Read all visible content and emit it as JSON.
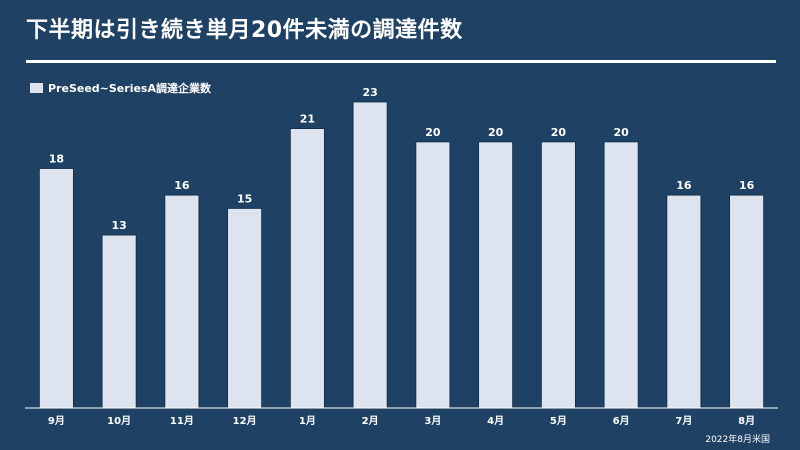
{
  "page": {
    "title": "下半期は引き続き単月20件未満の調達件数",
    "source_note": "2022年8月米国"
  },
  "colors": {
    "background": "#1f4164",
    "bar": "#dde4ef",
    "text": "#ffffff",
    "axis": "#ffffff"
  },
  "chart_data": {
    "type": "bar",
    "categories": [
      "9月",
      "10月",
      "11月",
      "12月",
      "1月",
      "2月",
      "3月",
      "4月",
      "5月",
      "6月",
      "7月",
      "8月"
    ],
    "series": [
      {
        "name": "PreSeed~SeriesA調達企業数",
        "values": [
          18,
          13,
          16,
          15,
          21,
          23,
          20,
          20,
          20,
          20,
          16,
          16
        ]
      }
    ],
    "ylim": [
      0,
      23
    ],
    "data_labels": true,
    "gridlines": false,
    "legend_position": "top-left",
    "xlabel": "",
    "ylabel": ""
  }
}
